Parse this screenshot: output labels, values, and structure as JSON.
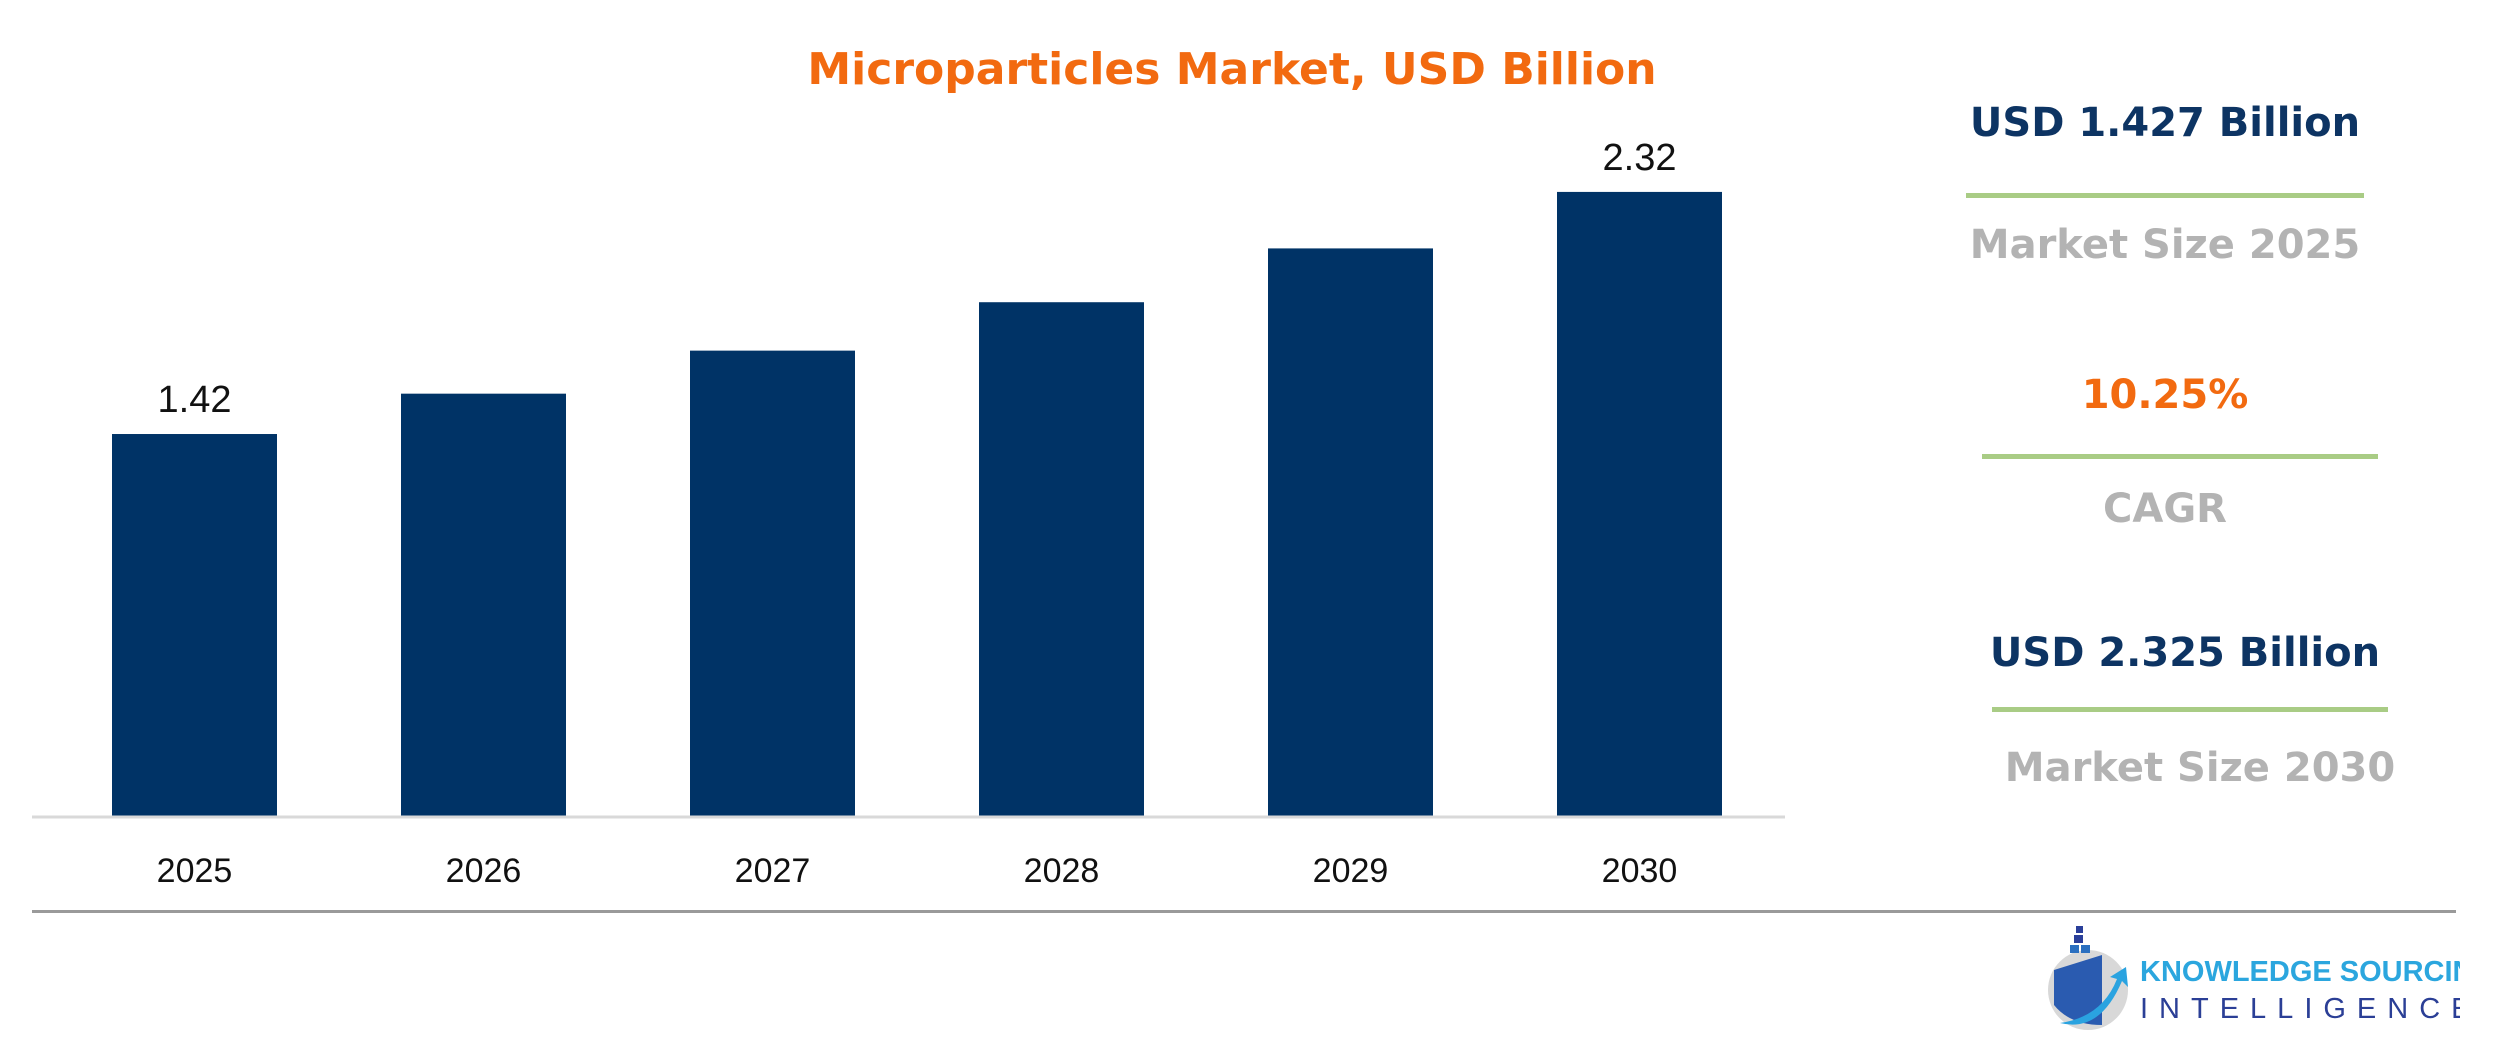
{
  "chart_data": {
    "type": "bar",
    "title": "Microparticles Market, USD Billion",
    "categories": [
      "2025",
      "2026",
      "2027",
      "2028",
      "2029",
      "2030"
    ],
    "values": [
      1.42,
      1.57,
      1.73,
      1.91,
      2.11,
      2.32
    ],
    "data_labels": {
      "0": "1.42",
      "5": "2.32"
    },
    "xlabel": "",
    "ylabel": "",
    "ylim": [
      0,
      2.6
    ],
    "grid": false,
    "bar_color": "#003366"
  },
  "stats": [
    {
      "value": "USD 1.427 Billion",
      "label": "Market Size 2025",
      "value_color": "#0d3463"
    },
    {
      "value": "10.25%",
      "label": "CAGR",
      "value_color": "#f26a10"
    },
    {
      "value": "USD 2.325 Billion",
      "label": "Market Size 2030",
      "value_color": "#0d3463"
    }
  ],
  "logo": {
    "line1": "KNOWLEDGE SOURCING",
    "line2": "INTELLIGENCE"
  },
  "colors": {
    "title": "#f26a10",
    "divider": "#a9cc85",
    "stat_label": "#b3b3b3"
  }
}
